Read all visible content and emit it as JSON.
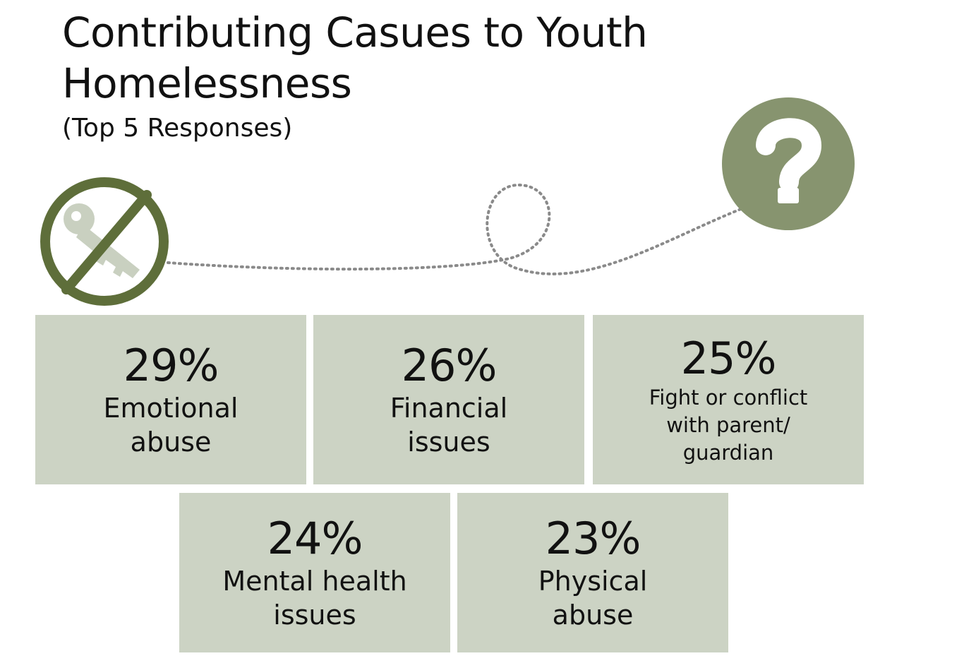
{
  "header": {
    "title": "Contributing Casues to Youth Homelessness",
    "subtitle": "(Top 5 Responses)"
  },
  "icons": {
    "no_key": "no-key-icon",
    "question": "question-mark-icon",
    "path": "dotted-path"
  },
  "colors": {
    "box_fill": "#ccd3c4",
    "icon_dark": "#5e6e3a",
    "icon_light": "#c9d0c0",
    "question_fill": "#87946f"
  },
  "responses": [
    {
      "percent": "29%",
      "label": "Emotional\nabuse"
    },
    {
      "percent": "26%",
      "label": "Financial\nissues"
    },
    {
      "percent": "25%",
      "label": "Fight or conflict\nwith parent/\nguardian"
    },
    {
      "percent": "24%",
      "label": "Mental health\nissues"
    },
    {
      "percent": "23%",
      "label": "Physical\nabuse"
    }
  ]
}
